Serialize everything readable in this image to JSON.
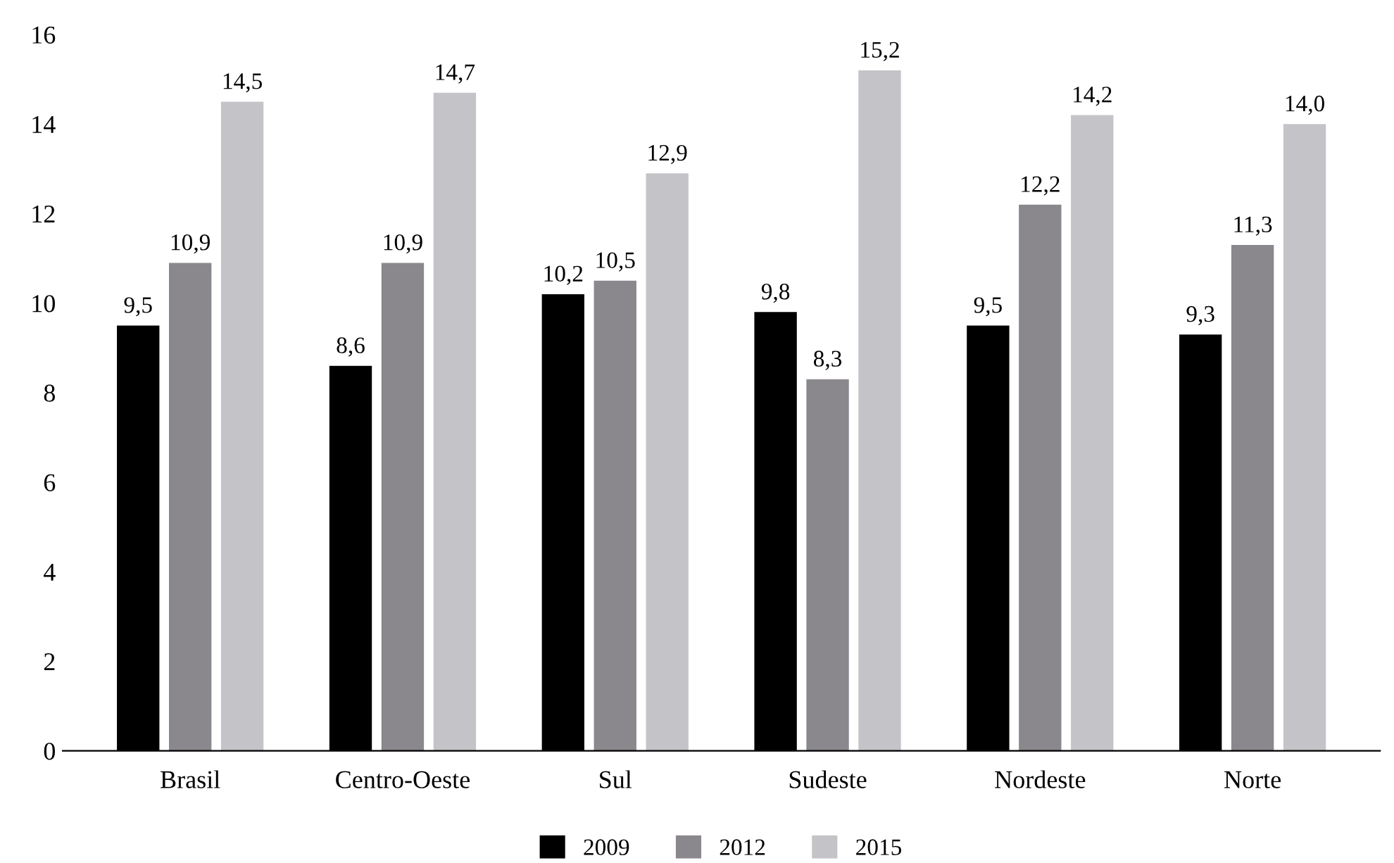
{
  "chart_data": {
    "type": "bar",
    "categories": [
      "Brasil",
      "Centro-Oeste",
      "Sul",
      "Sudeste",
      "Nordeste",
      "Norte"
    ],
    "series": [
      {
        "name": "2009",
        "color": "#000000",
        "values": [
          9.5,
          8.6,
          10.2,
          9.8,
          9.5,
          9.3
        ],
        "value_labels": [
          "9,5",
          "8,6",
          "10,2",
          "9,8",
          "9,5",
          "9,3"
        ]
      },
      {
        "name": "2012",
        "color": "#8a888c",
        "values": [
          10.9,
          10.9,
          10.5,
          8.3,
          12.2,
          11.3
        ],
        "value_labels": [
          "10,9",
          "10,9",
          "10,5",
          "8,3",
          "12,2",
          "11,3"
        ]
      },
      {
        "name": "2015",
        "color": "#c4c4c8",
        "values": [
          14.5,
          14.7,
          12.9,
          15.2,
          14.2,
          14.0
        ],
        "value_labels": [
          "14,5",
          "14,7",
          "12,9",
          "15,2",
          "14,2",
          "14,0"
        ]
      }
    ],
    "ylim": [
      0,
      16
    ],
    "yticks": [
      0,
      2,
      4,
      6,
      8,
      10,
      12,
      14,
      16
    ],
    "grid": false,
    "legend": "bottom"
  }
}
